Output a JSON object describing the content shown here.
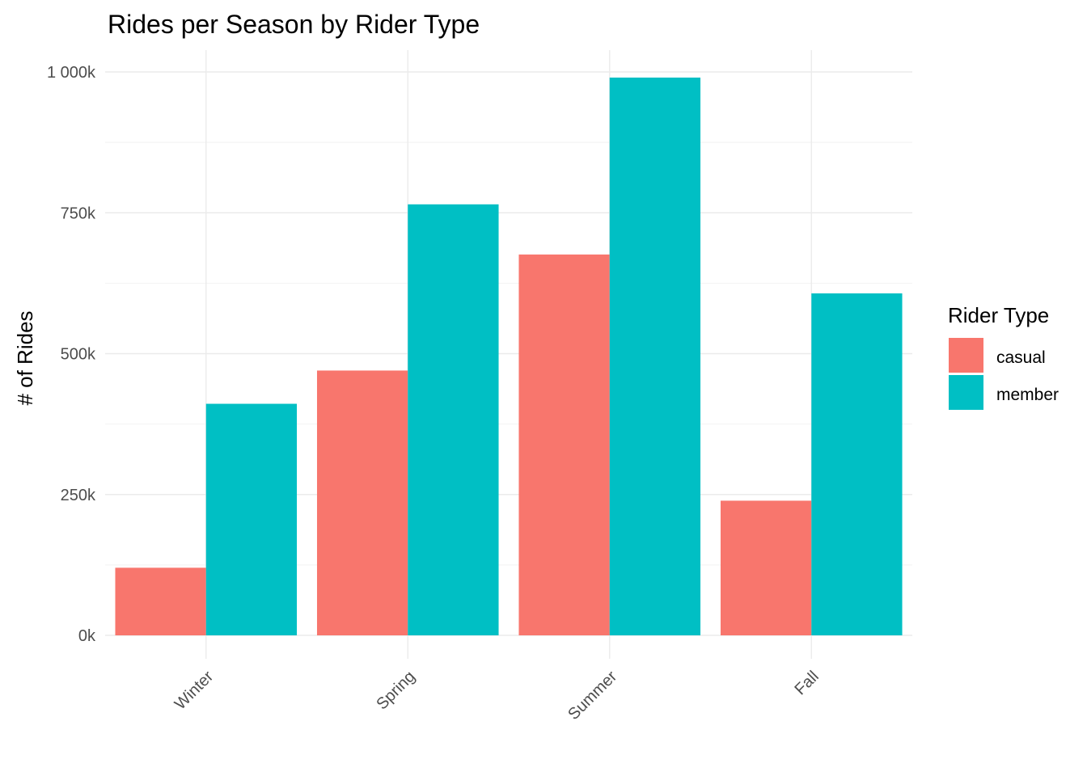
{
  "chart_data": {
    "type": "bar",
    "title": "Rides per Season by Rider Type",
    "xlabel": "",
    "ylabel": "# of Rides",
    "categories": [
      "Winter",
      "Spring",
      "Summer",
      "Fall"
    ],
    "series": [
      {
        "name": "casual",
        "color": "#f8766d",
        "values": [
          120000,
          470000,
          676000,
          239000
        ]
      },
      {
        "name": "member",
        "color": "#00bfc4",
        "values": [
          411000,
          765000,
          990000,
          607000
        ]
      }
    ],
    "ylim": [
      0,
      1000000
    ],
    "y_ticks": [
      0,
      250000,
      500000,
      750000,
      1000000
    ],
    "y_tick_labels": [
      "0k",
      "250k",
      "500k",
      "750k",
      "1 000k"
    ],
    "grid": true,
    "legend": {
      "title": "Rider Type",
      "placement": "right"
    }
  }
}
